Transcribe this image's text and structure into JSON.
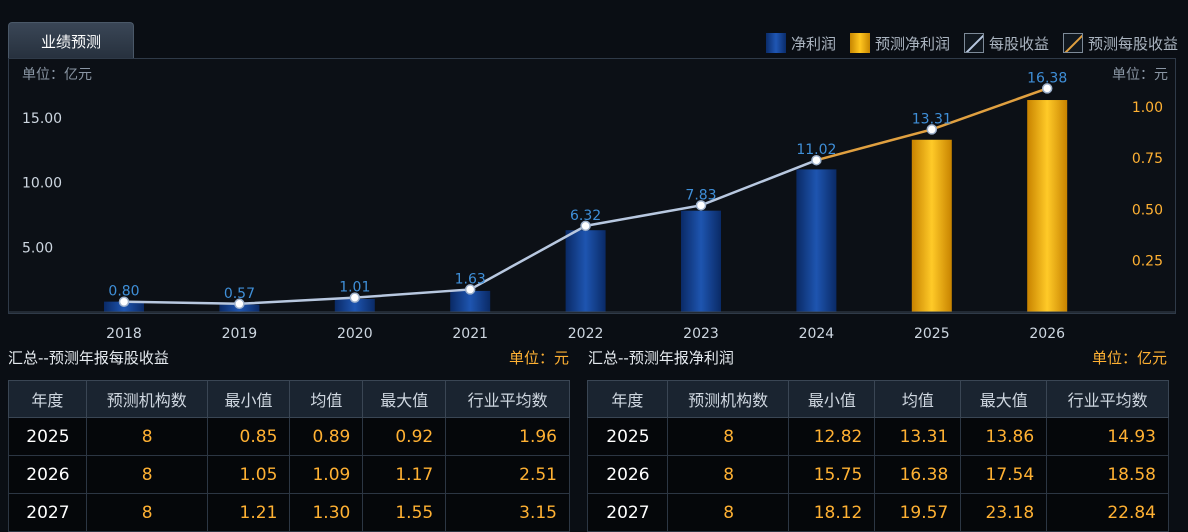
{
  "tab": {
    "label": "业绩预测"
  },
  "legend": [
    {
      "label": "净利润",
      "kind": "bar",
      "color": "#1f56b4"
    },
    {
      "label": "预测净利润",
      "kind": "bar",
      "color": "#ffc620"
    },
    {
      "label": "每股收益",
      "kind": "line",
      "color": "#b8c8e0"
    },
    {
      "label": "预测每股收益",
      "kind": "line",
      "color": "#e0a040"
    }
  ],
  "chart_data": {
    "type": "bar",
    "left_unit": "单位：亿元",
    "right_unit": "单位：元",
    "categories": [
      "2018",
      "2019",
      "2020",
      "2021",
      "2022",
      "2023",
      "2024",
      "2025",
      "2026"
    ],
    "series": [
      {
        "name": "净利润",
        "values": [
          0.8,
          0.57,
          1.01,
          1.63,
          6.32,
          7.83,
          11.02,
          null,
          null
        ],
        "color": "#1f56b4"
      },
      {
        "name": "预测净利润",
        "values": [
          null,
          null,
          null,
          null,
          null,
          null,
          null,
          13.31,
          16.38
        ],
        "color": "#ffc620"
      },
      {
        "name": "每股收益",
        "axis": "right",
        "values": [
          0.05,
          0.04,
          0.07,
          0.11,
          0.42,
          0.52,
          0.74,
          null,
          null
        ],
        "color": "#b8c8e0"
      },
      {
        "name": "预测每股收益",
        "axis": "right",
        "values": [
          null,
          null,
          null,
          null,
          null,
          null,
          0.74,
          0.89,
          1.09
        ],
        "color": "#e0a040"
      }
    ],
    "bar_labels": [
      "0.80",
      "0.57",
      "1.01",
      "1.63",
      "6.32",
      "7.83",
      "11.02",
      "13.31",
      "16.38"
    ],
    "left_ticks": [
      "5.00",
      "10.00",
      "15.00"
    ],
    "right_ticks": [
      "0.25",
      "0.50",
      "0.75",
      "1.00"
    ],
    "ylim_left": [
      0,
      17
    ],
    "ylim_right": [
      0,
      1.17
    ]
  },
  "eps_section": {
    "title": "汇总--预测年报每股收益",
    "unit": "单位：元",
    "headers": [
      "年度",
      "预测机构数",
      "最小值",
      "均值",
      "最大值",
      "行业平均数"
    ],
    "rows": [
      [
        "2025",
        "8",
        "0.85",
        "0.89",
        "0.92",
        "1.96"
      ],
      [
        "2026",
        "8",
        "1.05",
        "1.09",
        "1.17",
        "2.51"
      ],
      [
        "2027",
        "8",
        "1.21",
        "1.30",
        "1.55",
        "3.15"
      ]
    ]
  },
  "profit_section": {
    "title": "汇总--预测年报净利润",
    "unit": "单位：亿元",
    "headers": [
      "年度",
      "预测机构数",
      "最小值",
      "均值",
      "最大值",
      "行业平均数"
    ],
    "rows": [
      [
        "2025",
        "8",
        "12.82",
        "13.31",
        "13.86",
        "14.93"
      ],
      [
        "2026",
        "8",
        "15.75",
        "16.38",
        "17.54",
        "18.58"
      ],
      [
        "2027",
        "8",
        "18.12",
        "19.57",
        "23.18",
        "22.84"
      ]
    ]
  }
}
